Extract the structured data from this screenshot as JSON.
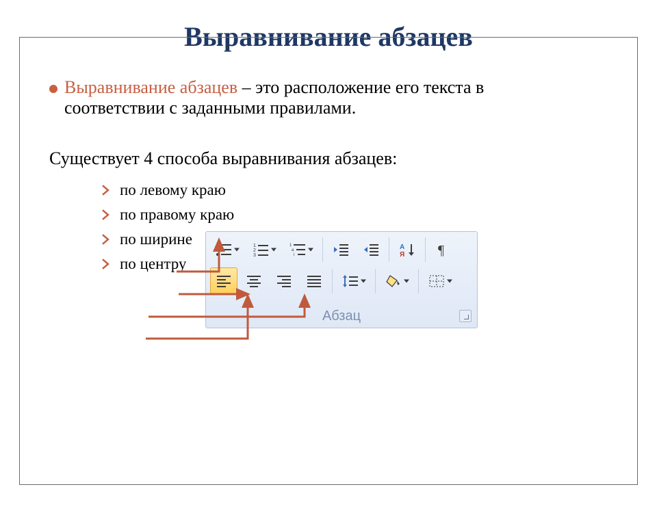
{
  "title": {
    "text": "Выравнивание абзацев",
    "color": "#1f3864",
    "fontsize": 40
  },
  "definition": {
    "bullet_color": "#c75f43",
    "term": "Выравнивание абзацев",
    "term_color": "#c75f43",
    "rest_line1": " – это расположение его текста в",
    "rest_line2": "соответствии с заданными правилами.",
    "fontsize": 26
  },
  "subhead": {
    "text": "Существует 4 способа выравнивания абзацев:",
    "fontsize": 26
  },
  "options": {
    "chevron_color": "#c75f43",
    "fontsize": 23,
    "items": [
      "по левому краю",
      "по правому краю",
      "по ширине",
      "по центру"
    ]
  },
  "toolbar": {
    "bg_top": "#eef3fb",
    "bg_bottom": "#dfe8f6",
    "border": "#b7c2d6",
    "label": "Абзац",
    "label_color": "#7d90b1",
    "selected_bg_top": "#ffe9a7",
    "selected_bg_bottom": "#ffcf5a",
    "selected_border": "#e0a636",
    "icon_stroke": "#3b3b3b",
    "sort_A_color": "#2b6fc4",
    "sort_YA_color": "#c0392b",
    "row1": [
      {
        "name": "bullets-button",
        "type": "bullets",
        "dropdown": true
      },
      {
        "name": "numbering-button",
        "type": "numbering",
        "dropdown": true
      },
      {
        "name": "multilevel-button",
        "type": "multilevel",
        "dropdown": true
      },
      {
        "sep": true
      },
      {
        "name": "decrease-indent-button",
        "type": "indent-dec"
      },
      {
        "name": "increase-indent-button",
        "type": "indent-inc"
      },
      {
        "sep": true
      },
      {
        "name": "sort-button",
        "type": "sort"
      },
      {
        "sep": true
      },
      {
        "name": "show-marks-button",
        "type": "pilcrow"
      }
    ],
    "row2": [
      {
        "name": "align-left-button",
        "type": "align-left",
        "selected": true
      },
      {
        "name": "align-center-button",
        "type": "align-center"
      },
      {
        "name": "align-right-button",
        "type": "align-right"
      },
      {
        "name": "align-justify-button",
        "type": "align-justify"
      },
      {
        "sep": true
      },
      {
        "name": "line-spacing-button",
        "type": "line-spacing",
        "dropdown": true
      },
      {
        "sep": true
      },
      {
        "name": "shading-button",
        "type": "shading",
        "dropdown": true
      },
      {
        "sep": true
      },
      {
        "name": "borders-button",
        "type": "borders",
        "dropdown": true
      }
    ]
  },
  "arrows": {
    "color": "#c05a3c",
    "width": 3,
    "paths": [
      {
        "from": [
          258,
          367
        ],
        "elbow": [
          320,
          367,
          320,
          320
        ],
        "head": [
          320,
          320
        ]
      },
      {
        "from": [
          261,
          400
        ],
        "elbow": [
          363,
          400,
          363,
          400
        ],
        "head": [
          363,
          400
        ]
      },
      {
        "from": [
          217,
          433
        ],
        "elbow": [
          445,
          433,
          445,
          402
        ],
        "head": [
          445,
          402
        ]
      },
      {
        "from": [
          213,
          465
        ],
        "elbow": [
          362,
          465,
          362,
          402
        ],
        "head": [
          362,
          402
        ]
      }
    ]
  }
}
